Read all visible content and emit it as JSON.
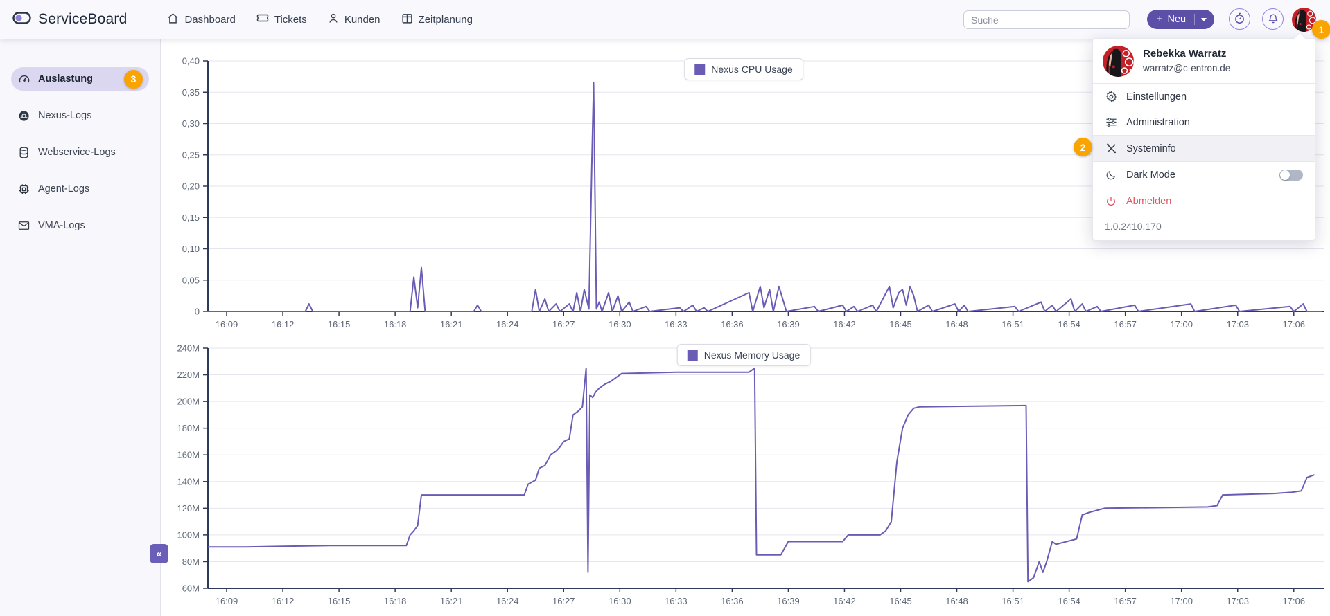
{
  "header": {
    "brand": "ServiceBoard",
    "nav": [
      {
        "label": "Dashboard",
        "icon": "home-icon"
      },
      {
        "label": "Tickets",
        "icon": "ticket-icon"
      },
      {
        "label": "Kunden",
        "icon": "user-icon"
      },
      {
        "label": "Zeitplanung",
        "icon": "schedule-icon"
      }
    ],
    "search_placeholder": "Suche",
    "new_button": {
      "plus": "+",
      "label": "Neu"
    },
    "avatar_count_badge": "1"
  },
  "sidebar": {
    "items": [
      {
        "label": "Auslastung",
        "icon": "gauge-icon",
        "active": true,
        "badge": "3"
      },
      {
        "label": "Nexus-Logs",
        "icon": "nexus-icon"
      },
      {
        "label": "Webservice-Logs",
        "icon": "database-icon"
      },
      {
        "label": "Agent-Logs",
        "icon": "chip-icon"
      },
      {
        "label": "VMA-Logs",
        "icon": "mail-icon"
      }
    ],
    "collapse_glyph": "«"
  },
  "user_menu": {
    "name": "Rebekka Warratz",
    "email": "warratz@c-entron.de",
    "settings_label": "Einstellungen",
    "administration_label": "Administration",
    "systeminfo_label": "Systeminfo",
    "dark_mode_label": "Dark Mode",
    "dark_mode_enabled": false,
    "logout_label": "Abmelden",
    "version": "1.0.2410.170",
    "step_badge": "2"
  },
  "colors": {
    "accent_purple": "#5b4fa8",
    "chart_line": "#6a5cb5",
    "badge_orange": "#f9a400",
    "logout_red": "#e25563",
    "axis_dark": "#2e3a59",
    "gridline": "#e5e5ee"
  },
  "chart_data": [
    {
      "type": "line",
      "legend": "Nexus CPU Usage",
      "color": "#6a5cb5",
      "ylim": [
        0,
        0.4
      ],
      "y_tick_values": [
        0,
        0.05,
        0.1,
        0.15,
        0.2,
        0.25,
        0.3,
        0.35,
        0.4
      ],
      "y_tick_labels": [
        "0",
        "0,05",
        "0,10",
        "0,15",
        "0,20",
        "0,25",
        "0,30",
        "0,35",
        "0,40"
      ],
      "x_min": 8,
      "x_max": 67.6,
      "x_tick_minutes": [
        9,
        12,
        15,
        18,
        21,
        24,
        27,
        30,
        33,
        36,
        39,
        42,
        45,
        48,
        51,
        54,
        57,
        60,
        63,
        66
      ],
      "x_tick_labels": [
        "16:09",
        "16:12",
        "16:15",
        "16:18",
        "16:21",
        "16:24",
        "16:27",
        "16:30",
        "16:33",
        "16:36",
        "16:39",
        "16:42",
        "16:45",
        "16:48",
        "16:51",
        "16:54",
        "16:57",
        "17:00",
        "17:03",
        "17:06"
      ],
      "points": [
        [
          8,
          0
        ],
        [
          13.2,
          0
        ],
        [
          13.4,
          0.012
        ],
        [
          13.6,
          0
        ],
        [
          18.8,
          0
        ],
        [
          19,
          0.055
        ],
        [
          19.2,
          0.006
        ],
        [
          19.4,
          0.07
        ],
        [
          19.6,
          0
        ],
        [
          22.2,
          0
        ],
        [
          22.4,
          0.01
        ],
        [
          22.6,
          0
        ],
        [
          25.3,
          0
        ],
        [
          25.5,
          0.035
        ],
        [
          25.7,
          0
        ],
        [
          26,
          0.02
        ],
        [
          26.2,
          0
        ],
        [
          26.6,
          0.012
        ],
        [
          26.8,
          0
        ],
        [
          27.3,
          0.012
        ],
        [
          27.5,
          0
        ],
        [
          27.7,
          0.03
        ],
        [
          27.9,
          0
        ],
        [
          28.1,
          0.035
        ],
        [
          28.35,
          0.004
        ],
        [
          28.5,
          0.23
        ],
        [
          28.6,
          0.365
        ],
        [
          28.75,
          0.004
        ],
        [
          28.9,
          0.015
        ],
        [
          29.05,
          0
        ],
        [
          29.4,
          0.03
        ],
        [
          29.6,
          0
        ],
        [
          29.9,
          0.025
        ],
        [
          30.1,
          0
        ],
        [
          30.5,
          0.015
        ],
        [
          30.7,
          0
        ],
        [
          31.4,
          0.008
        ],
        [
          31.6,
          0
        ],
        [
          33.2,
          0.006
        ],
        [
          33.4,
          0
        ],
        [
          33.9,
          0.01
        ],
        [
          34.1,
          0
        ],
        [
          34.5,
          0.006
        ],
        [
          34.7,
          0
        ],
        [
          36.9,
          0.03
        ],
        [
          37.1,
          0
        ],
        [
          37.5,
          0.04
        ],
        [
          37.7,
          0.006
        ],
        [
          38,
          0.035
        ],
        [
          38.2,
          0
        ],
        [
          38.5,
          0.04
        ],
        [
          38.7,
          0.02
        ],
        [
          38.9,
          0
        ],
        [
          40.4,
          0.008
        ],
        [
          40.6,
          0
        ],
        [
          41.9,
          0.01
        ],
        [
          42.1,
          0
        ],
        [
          42.5,
          0.008
        ],
        [
          42.7,
          0
        ],
        [
          43.5,
          0.01
        ],
        [
          43.7,
          0
        ],
        [
          44.4,
          0.04
        ],
        [
          44.6,
          0.006
        ],
        [
          44.9,
          0.03
        ],
        [
          45.1,
          0.035
        ],
        [
          45.3,
          0.01
        ],
        [
          45.5,
          0.04
        ],
        [
          45.7,
          0.025
        ],
        [
          45.9,
          0
        ],
        [
          46.5,
          0.01
        ],
        [
          46.7,
          0
        ],
        [
          47.9,
          0.012
        ],
        [
          48.1,
          0
        ],
        [
          48.4,
          0.01
        ],
        [
          48.6,
          0
        ],
        [
          51.1,
          0.008
        ],
        [
          51.3,
          0
        ],
        [
          52.5,
          0.015
        ],
        [
          52.7,
          0
        ],
        [
          53.1,
          0.01
        ],
        [
          53.3,
          0
        ],
        [
          54.1,
          0.02
        ],
        [
          54.3,
          0
        ],
        [
          54.7,
          0.012
        ],
        [
          54.9,
          0
        ],
        [
          55.5,
          0.008
        ],
        [
          55.7,
          0
        ],
        [
          57.5,
          0.01
        ],
        [
          57.7,
          0
        ],
        [
          60.5,
          0.012
        ],
        [
          60.7,
          0
        ],
        [
          62.9,
          0.01
        ],
        [
          63.1,
          0
        ],
        [
          65.8,
          0.008
        ],
        [
          66,
          0
        ],
        [
          66.5,
          0.012
        ],
        [
          66.7,
          0
        ],
        [
          67.5,
          0
        ]
      ]
    },
    {
      "type": "line",
      "legend": "Nexus Memory Usage",
      "color": "#6a5cb5",
      "unit": "MB",
      "ylim": [
        60,
        240
      ],
      "y_tick_values": [
        60,
        80,
        100,
        120,
        140,
        160,
        180,
        200,
        220,
        240
      ],
      "y_tick_labels": [
        "60M",
        "80M",
        "100M",
        "120M",
        "140M",
        "160M",
        "180M",
        "200M",
        "220M",
        "240M"
      ],
      "x_min": 8,
      "x_max": 67.6,
      "x_tick_minutes": [
        9,
        12,
        15,
        18,
        21,
        24,
        27,
        30,
        33,
        36,
        39,
        42,
        45,
        48,
        51,
        54,
        57,
        60,
        63,
        66
      ],
      "x_tick_labels": [
        "16:09",
        "16:12",
        "16:15",
        "16:18",
        "16:21",
        "16:24",
        "16:27",
        "16:30",
        "16:33",
        "16:36",
        "16:39",
        "16:42",
        "16:45",
        "16:48",
        "16:51",
        "16:54",
        "16:57",
        "17:00",
        "17:03",
        "17:06"
      ],
      "points": [
        [
          8,
          91
        ],
        [
          10,
          91
        ],
        [
          12,
          91.5
        ],
        [
          14.5,
          92
        ],
        [
          18.6,
          92
        ],
        [
          18.8,
          100
        ],
        [
          19,
          103
        ],
        [
          19.2,
          107
        ],
        [
          19.4,
          130
        ],
        [
          24.9,
          130
        ],
        [
          25.1,
          138
        ],
        [
          25.5,
          141
        ],
        [
          25.7,
          150
        ],
        [
          26,
          152
        ],
        [
          26.3,
          160
        ],
        [
          26.6,
          163
        ],
        [
          26.8,
          166
        ],
        [
          27,
          170
        ],
        [
          27.3,
          172
        ],
        [
          27.5,
          190
        ],
        [
          27.8,
          193
        ],
        [
          28,
          196
        ],
        [
          28.2,
          225
        ],
        [
          28.3,
          72
        ],
        [
          28.4,
          205
        ],
        [
          28.55,
          203
        ],
        [
          28.7,
          207
        ],
        [
          28.9,
          210
        ],
        [
          29.2,
          213
        ],
        [
          29.5,
          215
        ],
        [
          29.8,
          218
        ],
        [
          30.1,
          221
        ],
        [
          33,
          222
        ],
        [
          36.9,
          222
        ],
        [
          37.2,
          225
        ],
        [
          37.3,
          85
        ],
        [
          38.6,
          85
        ],
        [
          39,
          95
        ],
        [
          41.9,
          95
        ],
        [
          42.2,
          100
        ],
        [
          43.9,
          100
        ],
        [
          44.2,
          103
        ],
        [
          44.5,
          110
        ],
        [
          44.8,
          155
        ],
        [
          45.1,
          180
        ],
        [
          45.4,
          190
        ],
        [
          45.7,
          195
        ],
        [
          46,
          196
        ],
        [
          51.7,
          197
        ],
        [
          51.8,
          65
        ],
        [
          52.1,
          68
        ],
        [
          52.4,
          80
        ],
        [
          52.6,
          72
        ],
        [
          52.8,
          80
        ],
        [
          53.1,
          95
        ],
        [
          53.3,
          93
        ],
        [
          54.4,
          97
        ],
        [
          54.7,
          115
        ],
        [
          55.1,
          117
        ],
        [
          55.9,
          120
        ],
        [
          61.4,
          121
        ],
        [
          61.9,
          122
        ],
        [
          62.2,
          130
        ],
        [
          64.9,
          131
        ],
        [
          65.9,
          132
        ],
        [
          66.4,
          133
        ],
        [
          66.7,
          143
        ],
        [
          67.1,
          145
        ]
      ]
    }
  ]
}
